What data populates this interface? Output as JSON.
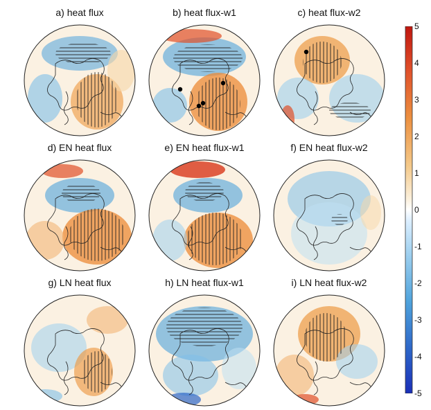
{
  "panels": [
    {
      "label": "a) heat flux"
    },
    {
      "label": "b) heat flux-w1"
    },
    {
      "label": "c) heat flux-w2"
    },
    {
      "label": "d) EN heat flux"
    },
    {
      "label": "e) EN heat flux-w1"
    },
    {
      "label": "f) EN heat flux-w2"
    },
    {
      "label": "g) LN heat flux"
    },
    {
      "label": "h) LN heat flux-w1"
    },
    {
      "label": "i) LN heat flux-w2"
    }
  ],
  "colorbar": {
    "ticks": [
      "5",
      "4",
      "3",
      "2",
      "1",
      "0",
      "-1",
      "-2",
      "-3",
      "-4",
      "-5"
    ],
    "colors": {
      "high": "#c0160f",
      "warm": "#e8913a",
      "light-warm": "#f7e2c0",
      "neutral": "#ffffff",
      "light-cool": "#bfe0f3",
      "cool": "#4fa3dc",
      "low": "#1a2fb8"
    }
  }
}
